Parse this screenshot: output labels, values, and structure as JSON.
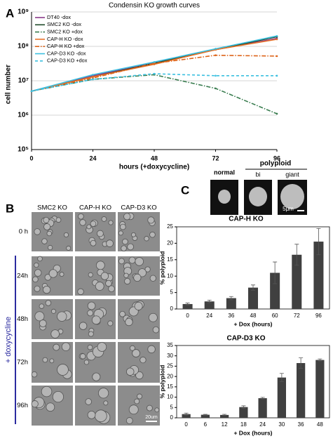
{
  "panel_labels": [
    "A",
    "B",
    "C"
  ],
  "chart_data": [
    {
      "type": "line",
      "title": "Condensin KO growth curves",
      "x_label": "hours (+doxycycline)",
      "y_label": "cell number",
      "x": [
        0,
        24,
        48,
        72,
        96
      ],
      "xlim": [
        0,
        96
      ],
      "xticks": [
        0,
        24,
        48,
        72,
        96
      ],
      "log_y": true,
      "ylim": [
        100000,
        1000000000
      ],
      "yticks": [
        {
          "value": 100000,
          "label": "10⁵"
        },
        {
          "value": 1000000,
          "label": "10⁶"
        },
        {
          "value": 10000000,
          "label": "10⁷"
        },
        {
          "value": 100000000,
          "label": "10⁸"
        },
        {
          "value": 1000000000,
          "label": "10⁹"
        }
      ],
      "grid": true,
      "legend": "upper left",
      "series": [
        {
          "name": "DT40 -dox",
          "color": "#8b3a8b",
          "dash": "solid",
          "values": [
            5000000,
            14000000,
            33000000,
            80000000,
            170000000
          ]
        },
        {
          "name": "SMC2 KO -dox",
          "color": "#1f4a2a",
          "dash": "solid",
          "values": [
            5000000,
            13000000,
            32000000,
            80000000,
            190000000
          ]
        },
        {
          "name": "SMC2 KO +dox",
          "color": "#3a7d50",
          "dash": "dashdot",
          "values": [
            5000000,
            11000000,
            15000000,
            6000000,
            1100000
          ]
        },
        {
          "name": "CAP-H KO -dox",
          "color": "#e8742a",
          "dash": "solid",
          "values": [
            5000000,
            13000000,
            30000000,
            80000000,
            160000000
          ]
        },
        {
          "name": "CAP-H KO +dox",
          "color": "#dd6318",
          "dash": "dashdot",
          "values": [
            5000000,
            12000000,
            32000000,
            55000000,
            52000000
          ]
        },
        {
          "name": "CAP-D3 KO -dox",
          "color": "#3cc0e0",
          "dash": "solid",
          "values": [
            5000000,
            15000000,
            35000000,
            85000000,
            200000000
          ]
        },
        {
          "name": "CAP-D3 KO +dox",
          "color": "#3cc0e0",
          "dash": "dashed",
          "values": [
            5000000,
            11000000,
            16000000,
            14000000,
            14000000
          ]
        }
      ]
    },
    {
      "type": "bar",
      "title": "CAP-H KO",
      "x_label": "+ Dox (hours)",
      "y_label": "% polyploid",
      "categories": [
        "0",
        "24",
        "36",
        "48",
        "60",
        "72",
        "96"
      ],
      "values": [
        1.5,
        2.3,
        3.3,
        6.5,
        11,
        16.5,
        20.5
      ],
      "errors": [
        0.3,
        0.4,
        0.5,
        0.8,
        3.3,
        3.2,
        4
      ],
      "color": "#404040",
      "ylim": [
        0,
        25
      ],
      "yticks": [
        0,
        5,
        10,
        15,
        20,
        25
      ]
    },
    {
      "type": "bar",
      "title": "CAP-D3 KO",
      "x_label": "+ Dox (hours)",
      "y_label": "% polyploid",
      "categories": [
        "0",
        "6",
        "12",
        "18",
        "24",
        "30",
        "36",
        "48"
      ],
      "values": [
        1.8,
        1.5,
        1.4,
        5.2,
        9.5,
        19.5,
        26.5,
        28
      ],
      "errors": [
        0.5,
        0.2,
        0.3,
        0.6,
        0.4,
        2,
        2.5,
        0.5
      ],
      "color": "#404040",
      "ylim": [
        0,
        35
      ],
      "yticks": [
        0,
        5,
        10,
        15,
        20,
        25,
        30,
        35
      ]
    }
  ],
  "panel_b": {
    "columns": [
      "SMC2 KO",
      "CAP-H KO",
      "CAP-D3 KO"
    ],
    "rows": [
      "0 h",
      "24h",
      "48h",
      "72h",
      "96h"
    ],
    "treatment": "+ doxycycline",
    "scale_bar": "20um"
  },
  "panel_c_images": {
    "labels": [
      "normal",
      "bi",
      "giant"
    ],
    "group": "polyploid",
    "scale_bar": "5μm"
  }
}
